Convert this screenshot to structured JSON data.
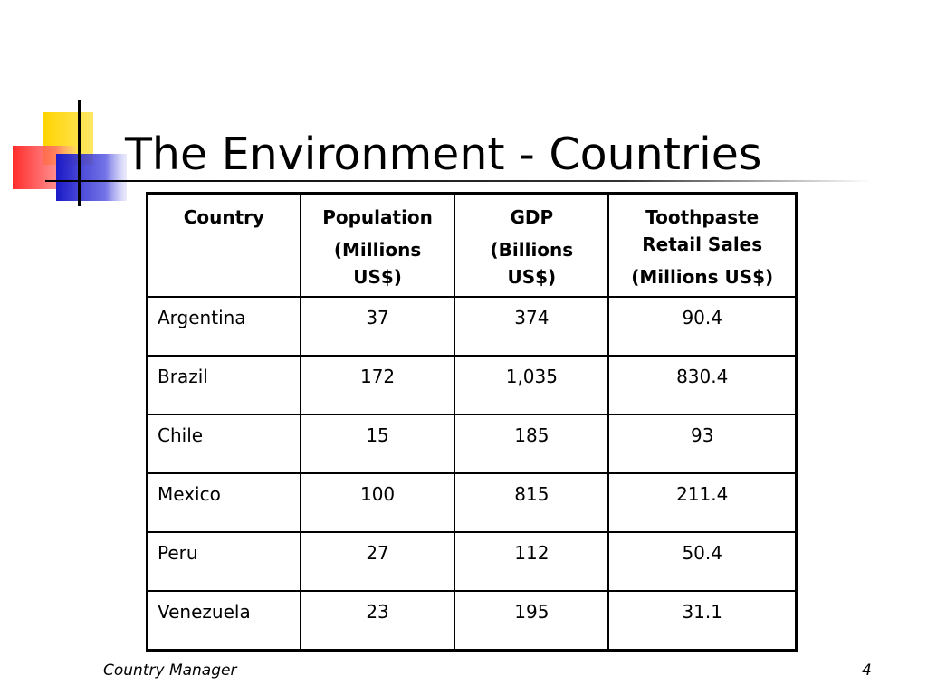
{
  "slide": {
    "title": "The Environment - Countries",
    "footer_left": "Country Manager",
    "page_number": "4"
  },
  "table": {
    "headers": [
      {
        "lines": [
          "Country"
        ]
      },
      {
        "lines": [
          "Population",
          "(Millions",
          "US$)"
        ]
      },
      {
        "lines": [
          "GDP",
          "(Billions",
          "US$)"
        ]
      },
      {
        "lines": [
          "Toothpaste",
          "Retail Sales",
          "(Millions US$)"
        ]
      }
    ],
    "rows": [
      {
        "country": "Argentina",
        "population": "37",
        "gdp": "374",
        "sales": "90.4"
      },
      {
        "country": "Brazil",
        "population": "172",
        "gdp": "1,035",
        "sales": "830.4"
      },
      {
        "country": "Chile",
        "population": "15",
        "gdp": "185",
        "sales": "93"
      },
      {
        "country": "Mexico",
        "population": "100",
        "gdp": "815",
        "sales": "211.4"
      },
      {
        "country": "Peru",
        "population": "27",
        "gdp": "112",
        "sales": "50.4"
      },
      {
        "country": "Venezuela",
        "population": "23",
        "gdp": "195",
        "sales": "31.1"
      }
    ]
  },
  "decoration": {
    "yellow": "#FFD400",
    "red": "#FF4040",
    "blue": "#2020D0"
  }
}
